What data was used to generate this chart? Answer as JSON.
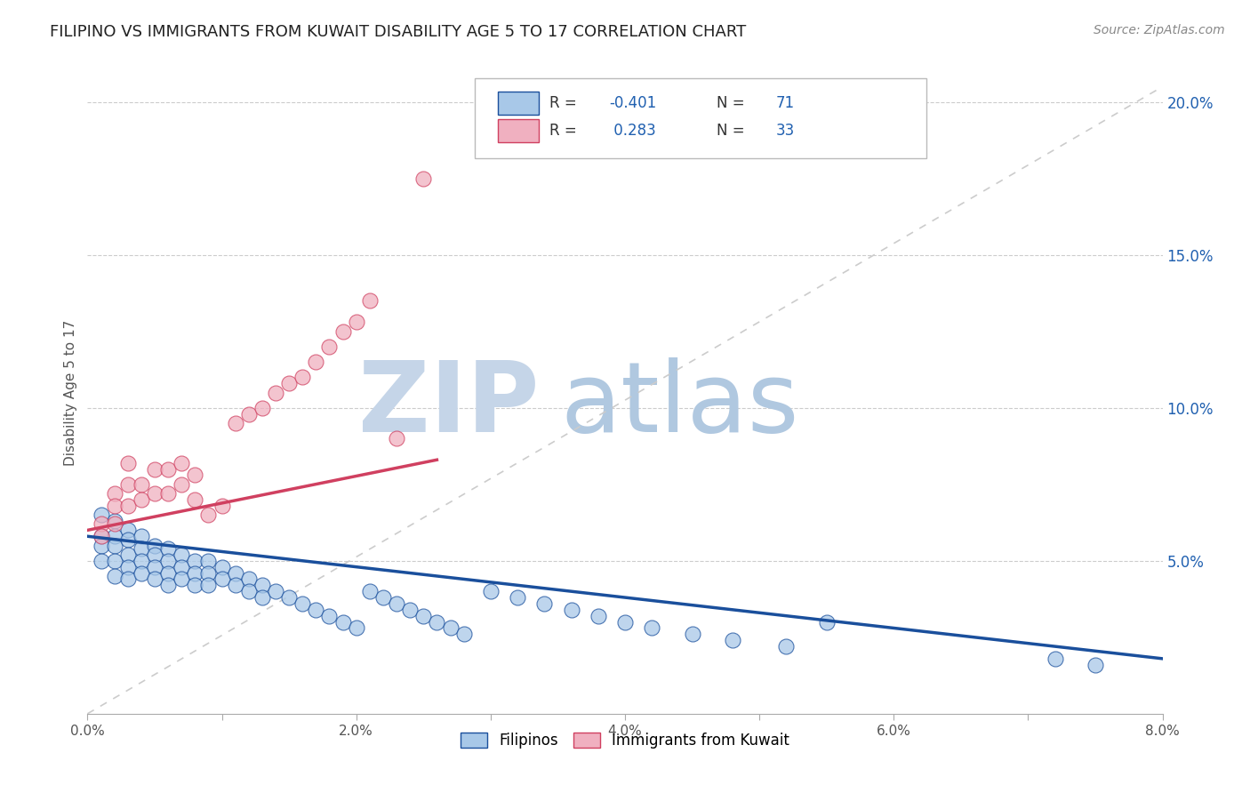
{
  "title": "FILIPINO VS IMMIGRANTS FROM KUWAIT DISABILITY AGE 5 TO 17 CORRELATION CHART",
  "source": "Source: ZipAtlas.com",
  "ylabel": "Disability Age 5 to 17",
  "legend_label1": "Filipinos",
  "legend_label2": "Immigrants from Kuwait",
  "xlim": [
    0.0,
    0.08
  ],
  "ylim": [
    0.0,
    0.21
  ],
  "yticks": [
    0.05,
    0.1,
    0.15,
    0.2
  ],
  "ytick_labels": [
    "5.0%",
    "10.0%",
    "15.0%",
    "20.0%"
  ],
  "xticks": [
    0.0,
    0.01,
    0.02,
    0.03,
    0.04,
    0.05,
    0.06,
    0.07,
    0.08
  ],
  "xtick_labels": [
    "0.0%",
    "",
    "2.0%",
    "",
    "4.0%",
    "",
    "6.0%",
    "",
    "8.0%"
  ],
  "blue_color": "#a8c8e8",
  "pink_color": "#f0b0c0",
  "blue_line_color": "#1a4f9c",
  "pink_line_color": "#d04060",
  "grid_color": "#cccccc",
  "watermark_zip_color": "#c8d8ec",
  "watermark_atlas_color": "#b8cce4",
  "blue_scatter_x": [
    0.001,
    0.001,
    0.001,
    0.001,
    0.002,
    0.002,
    0.002,
    0.002,
    0.002,
    0.003,
    0.003,
    0.003,
    0.003,
    0.003,
    0.004,
    0.004,
    0.004,
    0.004,
    0.005,
    0.005,
    0.005,
    0.005,
    0.006,
    0.006,
    0.006,
    0.006,
    0.007,
    0.007,
    0.007,
    0.008,
    0.008,
    0.008,
    0.009,
    0.009,
    0.009,
    0.01,
    0.01,
    0.011,
    0.011,
    0.012,
    0.012,
    0.013,
    0.013,
    0.014,
    0.015,
    0.016,
    0.017,
    0.018,
    0.019,
    0.02,
    0.021,
    0.022,
    0.023,
    0.024,
    0.025,
    0.026,
    0.027,
    0.028,
    0.03,
    0.032,
    0.034,
    0.036,
    0.038,
    0.04,
    0.042,
    0.045,
    0.048,
    0.052,
    0.055,
    0.072,
    0.075
  ],
  "blue_scatter_y": [
    0.065,
    0.058,
    0.055,
    0.05,
    0.063,
    0.058,
    0.055,
    0.05,
    0.045,
    0.06,
    0.057,
    0.052,
    0.048,
    0.044,
    0.058,
    0.054,
    0.05,
    0.046,
    0.055,
    0.052,
    0.048,
    0.044,
    0.054,
    0.05,
    0.046,
    0.042,
    0.052,
    0.048,
    0.044,
    0.05,
    0.046,
    0.042,
    0.05,
    0.046,
    0.042,
    0.048,
    0.044,
    0.046,
    0.042,
    0.044,
    0.04,
    0.042,
    0.038,
    0.04,
    0.038,
    0.036,
    0.034,
    0.032,
    0.03,
    0.028,
    0.04,
    0.038,
    0.036,
    0.034,
    0.032,
    0.03,
    0.028,
    0.026,
    0.04,
    0.038,
    0.036,
    0.034,
    0.032,
    0.03,
    0.028,
    0.026,
    0.024,
    0.022,
    0.03,
    0.018,
    0.016
  ],
  "pink_scatter_x": [
    0.001,
    0.001,
    0.002,
    0.002,
    0.002,
    0.003,
    0.003,
    0.003,
    0.004,
    0.004,
    0.005,
    0.005,
    0.006,
    0.006,
    0.007,
    0.007,
    0.008,
    0.008,
    0.009,
    0.01,
    0.011,
    0.012,
    0.013,
    0.014,
    0.015,
    0.016,
    0.017,
    0.018,
    0.019,
    0.02,
    0.021,
    0.023,
    0.025
  ],
  "pink_scatter_y": [
    0.062,
    0.058,
    0.072,
    0.068,
    0.062,
    0.082,
    0.075,
    0.068,
    0.075,
    0.07,
    0.08,
    0.072,
    0.08,
    0.072,
    0.082,
    0.075,
    0.078,
    0.07,
    0.065,
    0.068,
    0.095,
    0.098,
    0.1,
    0.105,
    0.108,
    0.11,
    0.115,
    0.12,
    0.125,
    0.128,
    0.135,
    0.09,
    0.175
  ],
  "blue_trendline_x": [
    0.0,
    0.08
  ],
  "blue_trendline_y": [
    0.058,
    0.018
  ],
  "pink_trendline_x": [
    0.0,
    0.026
  ],
  "pink_trendline_y": [
    0.06,
    0.083
  ],
  "ref_line_x": [
    0.0,
    0.08
  ],
  "ref_line_y": [
    0.0,
    0.205
  ]
}
